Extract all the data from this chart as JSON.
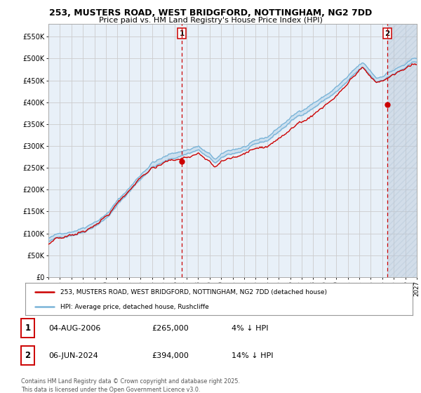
{
  "title_line1": "253, MUSTERS ROAD, WEST BRIDGFORD, NOTTINGHAM, NG2 7DD",
  "title_line2": "Price paid vs. HM Land Registry's House Price Index (HPI)",
  "legend_line1": "253, MUSTERS ROAD, WEST BRIDGFORD, NOTTINGHAM, NG2 7DD (detached house)",
  "legend_line2": "HPI: Average price, detached house, Rushcliffe",
  "annotation1_date": "04-AUG-2006",
  "annotation1_price": "£265,000",
  "annotation1_hpi": "4% ↓ HPI",
  "annotation1_year": 2006.59,
  "annotation1_value": 265000,
  "annotation2_date": "06-JUN-2024",
  "annotation2_price": "£394,000",
  "annotation2_hpi": "14% ↓ HPI",
  "annotation2_year": 2024.43,
  "annotation2_value": 394000,
  "hpi_color": "#7ab4d8",
  "hpi_fill_color": "#cde0ef",
  "sale_color": "#cc0000",
  "vline_color": "#cc0000",
  "grid_color": "#cccccc",
  "plot_bg_color": "#e8f0f8",
  "ylim": [
    0,
    580000
  ],
  "yticks": [
    0,
    50000,
    100000,
    150000,
    200000,
    250000,
    300000,
    350000,
    400000,
    450000,
    500000,
    550000
  ],
  "ytick_labels": [
    "£0",
    "£50K",
    "£100K",
    "£150K",
    "£200K",
    "£250K",
    "£300K",
    "£350K",
    "£400K",
    "£450K",
    "£500K",
    "£550K"
  ],
  "xlim_start": 1995,
  "xlim_end": 2027,
  "footer": "Contains HM Land Registry data © Crown copyright and database right 2025.\nThis data is licensed under the Open Government Licence v3.0."
}
